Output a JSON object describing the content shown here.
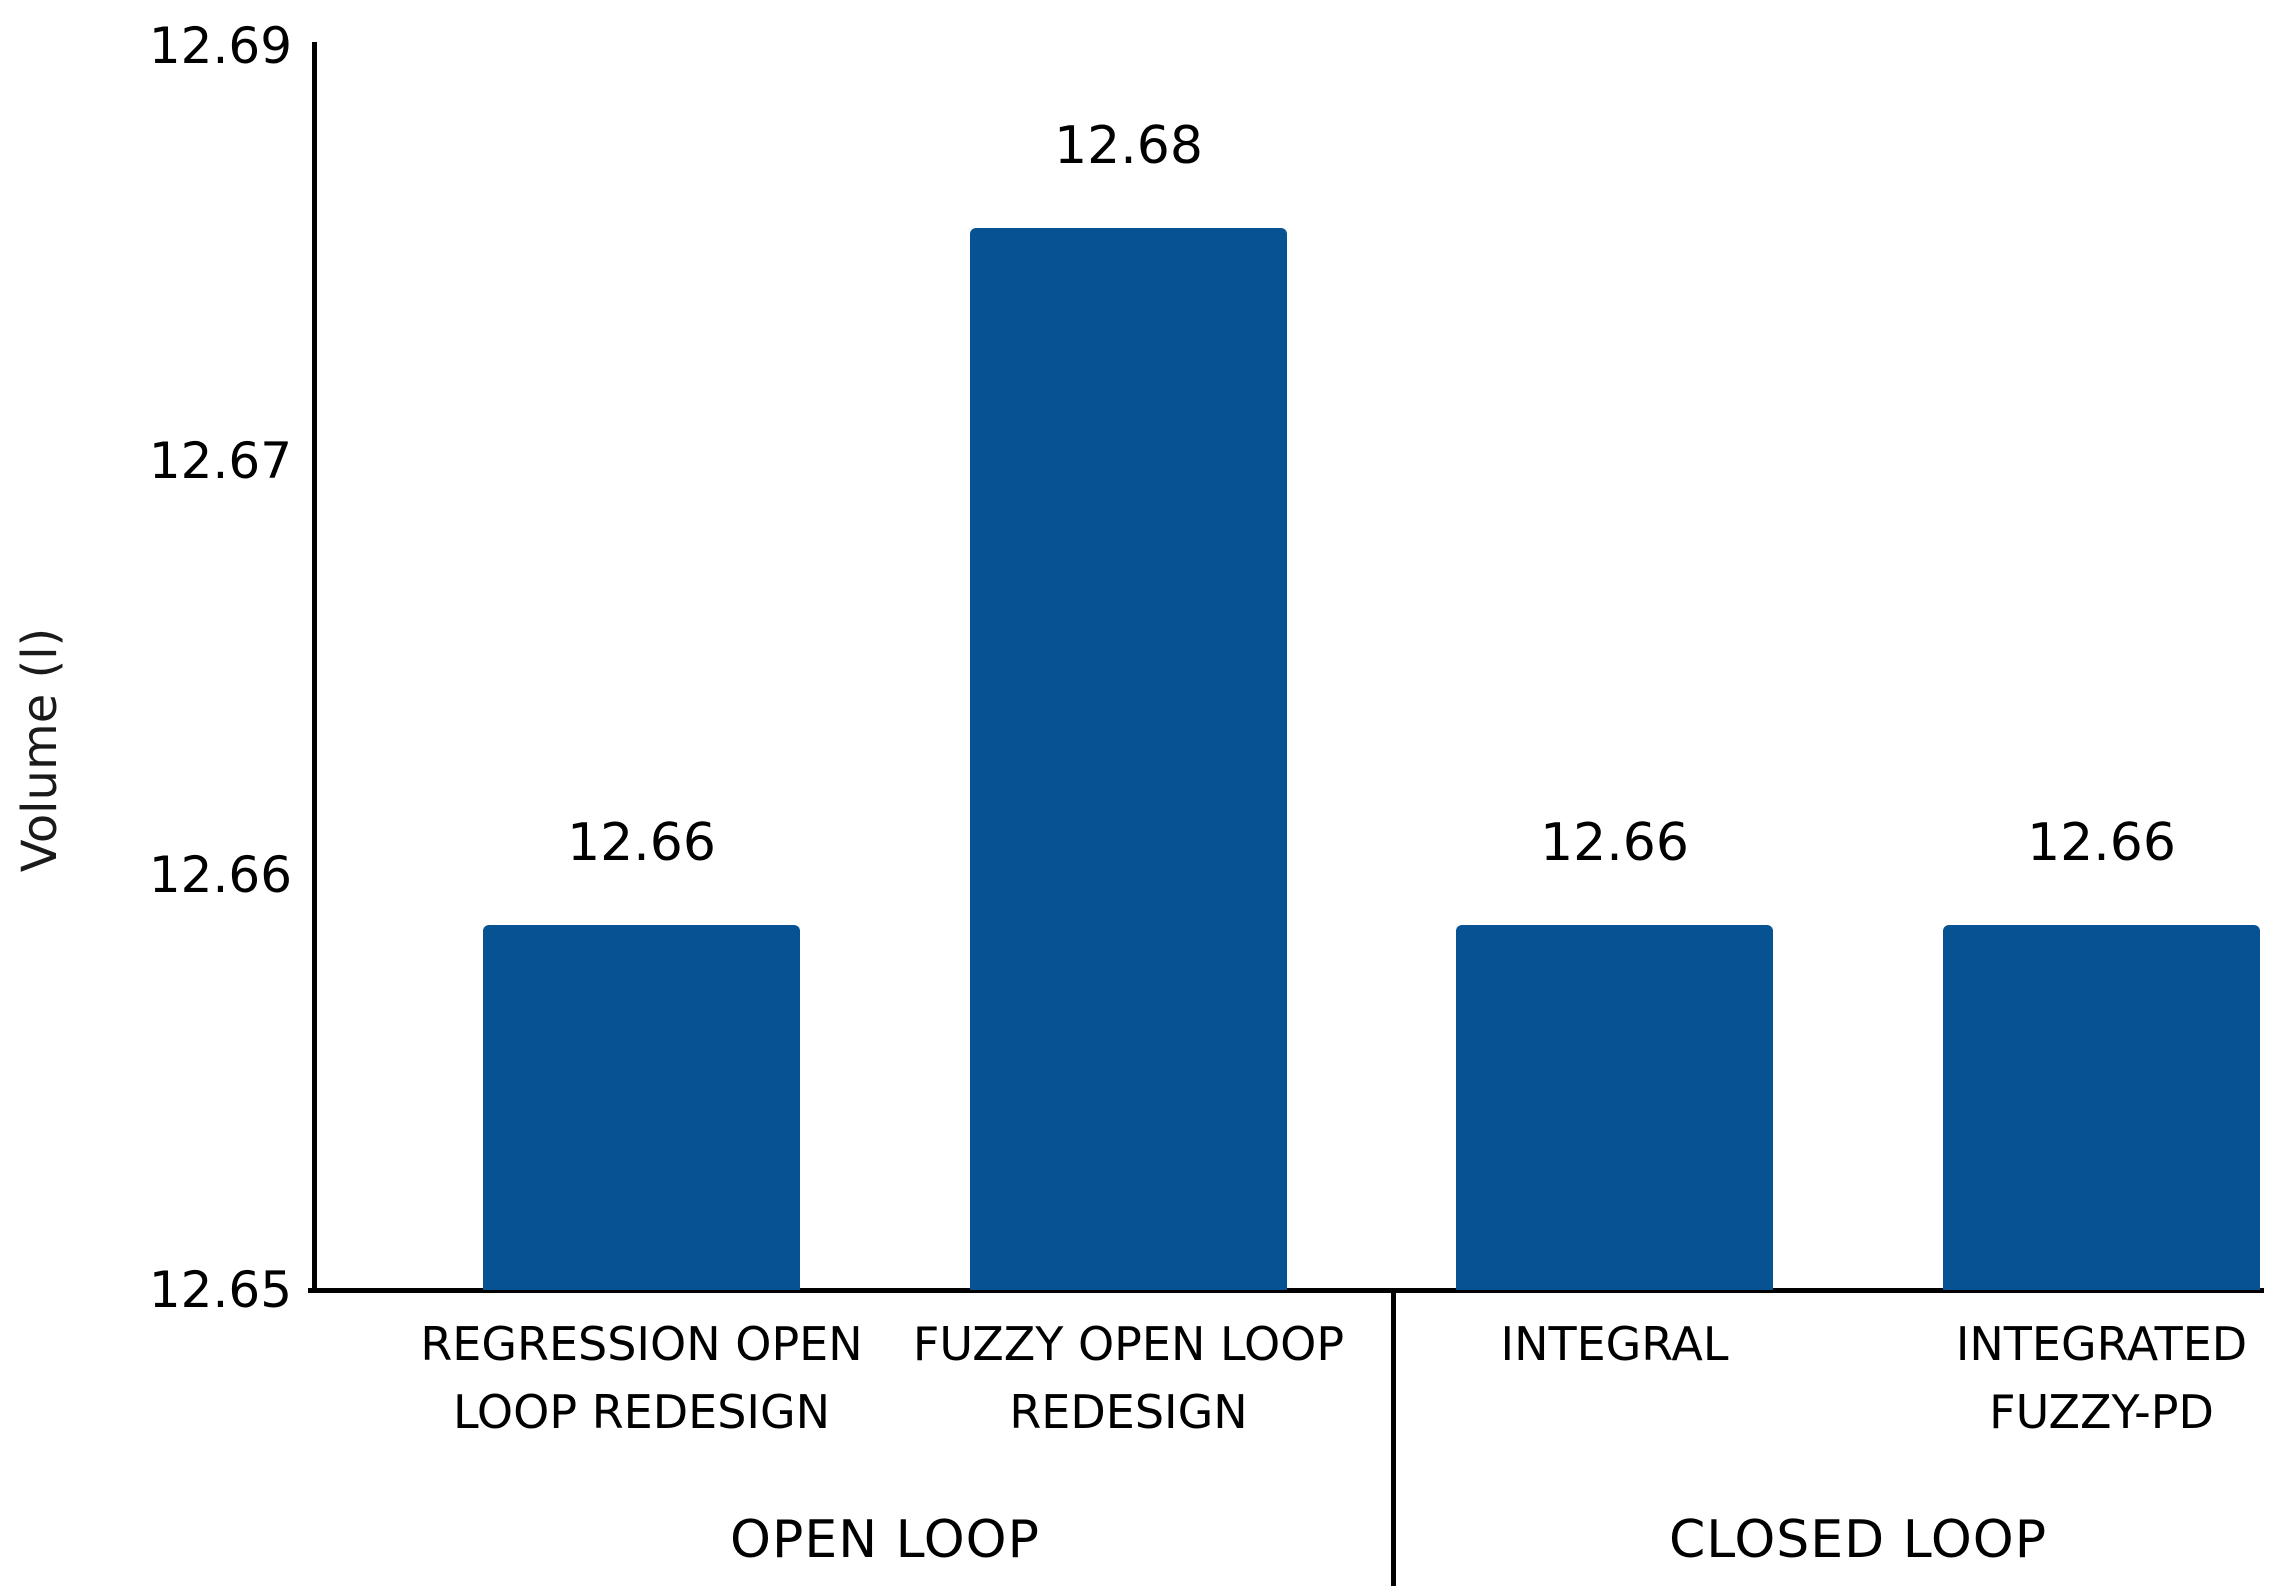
{
  "chart_data": {
    "type": "bar",
    "title": "",
    "xlabel": "",
    "ylabel": "Volume (l)",
    "categories": [
      "REGRESSION OPEN\nLOOP REDESIGN",
      "FUZZY OPEN LOOP\nREDESIGN",
      "INTEGRAL",
      "INTEGRATED\nFUZZY-PD"
    ],
    "series": [
      {
        "name": "Volume",
        "values": [
          12.661,
          12.682,
          12.661,
          12.661
        ],
        "data_labels": [
          "12.66",
          "12.68",
          "12.66",
          "12.66"
        ]
      }
    ],
    "groups": [
      {
        "label": "OPEN LOOP",
        "span": [
          0,
          1
        ]
      },
      {
        "label": "CLOSED LOOP",
        "span": [
          2,
          3
        ]
      }
    ],
    "y_axis": {
      "min": 12.65,
      "max": 12.6875,
      "tick_values": [
        12.65,
        12.6625,
        12.675,
        12.6875
      ],
      "tick_labels": [
        "12.65",
        "12.66",
        "12.67",
        "12.69"
      ]
    },
    "bar_color": "#075293",
    "grid": false,
    "legend": false
  }
}
